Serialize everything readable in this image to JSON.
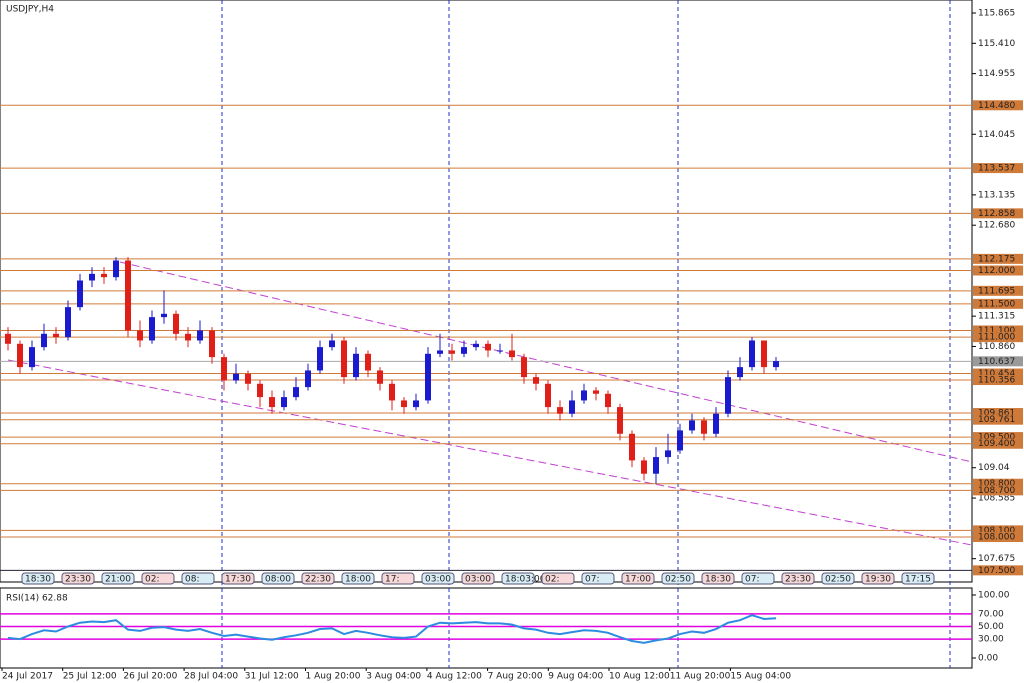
{
  "chart_data": {
    "type": "candlestick",
    "title": "USDJPY,H4",
    "up_color": "#1a1ad0",
    "down_color": "#e02018",
    "level_color": "#d07a3a",
    "ylim": [
      107.43,
      116.06
    ],
    "yticks": [
      115.865,
      {
        "value": 115.41,
        "label": "115.410"
      },
      114.955,
      114.045,
      113.135,
      {
        "value": 112.68,
        "label": "112.680"
      },
      111.315,
      {
        "value": 110.86,
        "label": "110.860"
      },
      109.04,
      108.585,
      107.675
    ],
    "levels": [
      {
        "value": 114.48,
        "label": "114.480"
      },
      113.537,
      112.858,
      112.175,
      {
        "value": 112.0,
        "label": "112.000"
      },
      111.695,
      {
        "value": 111.5,
        "label": "111.500"
      },
      {
        "value": 111.1,
        "label": "111.100"
      },
      {
        "value": 111.0,
        "label": "111.000"
      },
      110.454,
      110.356,
      109.861,
      109.761,
      {
        "value": 109.5,
        "label": "109.500"
      },
      {
        "value": 109.4,
        "label": "109.400"
      },
      {
        "value": 108.8,
        "label": "108.800"
      },
      {
        "value": 108.7,
        "label": "108.700"
      },
      {
        "value": 108.1,
        "label": "108.100"
      },
      {
        "value": 108.0,
        "label": "108.000"
      }
    ],
    "price_line": 110.637,
    "bottom_level": {
      "value": 107.5,
      "label": "107.500"
    },
    "open": [
      111.05,
      110.9,
      110.55,
      110.85,
      111.05,
      111.0,
      111.45,
      111.85,
      111.95,
      111.9,
      112.15,
      111.1,
      110.95,
      111.3,
      111.35,
      111.05,
      110.95,
      111.1,
      110.7,
      110.35,
      110.45,
      110.3,
      110.1,
      109.95,
      110.1,
      110.25,
      110.5,
      110.85,
      110.95,
      110.4,
      110.75,
      110.5,
      110.3,
      110.05,
      109.95,
      110.05,
      110.75,
      110.8,
      110.75,
      110.85,
      110.9,
      110.8,
      110.8,
      110.7,
      110.4,
      110.3,
      109.95,
      109.85,
      110.05,
      110.2,
      110.15,
      109.95,
      109.55,
      109.15,
      108.95,
      109.2,
      109.3,
      109.6,
      109.75,
      109.55,
      109.85,
      110.4,
      110.55,
      110.95,
      110.55
    ],
    "high": [
      111.15,
      110.95,
      110.95,
      111.2,
      111.15,
      111.55,
      111.95,
      112.05,
      112.05,
      112.2,
      112.2,
      111.25,
      111.4,
      111.7,
      111.4,
      111.15,
      111.25,
      111.15,
      110.75,
      110.6,
      110.5,
      110.35,
      110.2,
      110.2,
      110.4,
      110.6,
      110.95,
      111.05,
      111.0,
      110.85,
      110.8,
      110.55,
      110.35,
      110.1,
      110.15,
      110.85,
      111.05,
      110.9,
      110.95,
      110.95,
      110.95,
      110.9,
      111.05,
      110.75,
      110.45,
      110.35,
      110.05,
      110.2,
      110.3,
      110.25,
      110.2,
      110.0,
      109.6,
      109.2,
      109.35,
      109.55,
      109.7,
      109.85,
      109.8,
      109.95,
      110.5,
      110.7,
      111.0,
      110.95,
      110.7
    ],
    "low": [
      110.8,
      110.45,
      110.5,
      110.8,
      110.9,
      110.95,
      111.4,
      111.75,
      111.8,
      111.85,
      111.0,
      110.85,
      110.9,
      111.2,
      110.95,
      110.85,
      110.9,
      110.6,
      110.2,
      110.3,
      110.2,
      109.95,
      109.85,
      109.9,
      110.05,
      110.2,
      110.45,
      110.8,
      110.3,
      110.35,
      110.4,
      110.2,
      109.9,
      109.85,
      109.9,
      110.0,
      110.7,
      110.65,
      110.7,
      110.8,
      110.7,
      110.75,
      110.65,
      110.3,
      110.2,
      109.85,
      109.75,
      109.8,
      110.0,
      110.05,
      109.85,
      109.45,
      109.05,
      108.85,
      108.8,
      109.1,
      109.25,
      109.55,
      109.45,
      109.5,
      109.8,
      110.35,
      110.5,
      110.45,
      110.5
    ],
    "close": [
      110.9,
      110.55,
      110.85,
      111.05,
      111.0,
      111.45,
      111.85,
      111.95,
      111.9,
      112.15,
      111.1,
      110.95,
      111.3,
      111.35,
      111.05,
      110.95,
      111.1,
      110.7,
      110.35,
      110.45,
      110.3,
      110.1,
      109.95,
      110.1,
      110.25,
      110.5,
      110.85,
      110.95,
      110.4,
      110.75,
      110.5,
      110.3,
      110.05,
      109.95,
      110.05,
      110.75,
      110.8,
      110.75,
      110.85,
      110.9,
      110.8,
      110.8,
      110.7,
      110.4,
      110.3,
      109.95,
      109.85,
      110.05,
      110.2,
      110.15,
      109.95,
      109.55,
      109.15,
      108.95,
      109.2,
      109.3,
      109.6,
      109.75,
      109.55,
      109.85,
      110.4,
      110.55,
      110.95,
      110.55,
      110.64
    ],
    "x_labels": [
      "24 Jul 2017",
      "25 Jul 12:00",
      "26 Jul 20:00",
      "28 Jul 04:00",
      "31 Jul 12:00",
      "1 Aug 20:00",
      "3 Aug 04:00",
      "4 Aug 12:00",
      "7 Aug 20:00",
      "9 Aug 04:00",
      "10 Aug 12:00",
      "11 Aug 20:00",
      "15 Aug 04:00"
    ],
    "time_boxes": [
      "18:30",
      "23:30",
      "21:00",
      "02:",
      "08:",
      "17:30",
      "08:00",
      "22:30",
      "18:00",
      "17:",
      "03:00",
      "03:00",
      "18:03:00",
      "02:",
      "07:",
      "17:00",
      "02:50",
      "18:30",
      "07:",
      "23:30",
      "02:50",
      "19:30",
      "17:15"
    ],
    "rsi": {
      "title": "RSI(14) 62.88",
      "color": "#2d8ce0",
      "level_color": "#e000e0",
      "ylim": [
        0,
        100
      ],
      "yticks": [
        {
          "value": 100,
          "label": "100.00"
        },
        {
          "value": 70,
          "label": "70.00"
        },
        {
          "value": 50,
          "label": "50.00"
        },
        {
          "value": 30,
          "label": "30.00"
        },
        {
          "value": 0,
          "label": "0.00"
        }
      ],
      "values": [
        32,
        30,
        38,
        44,
        42,
        50,
        56,
        58,
        57,
        60,
        45,
        43,
        48,
        49,
        45,
        43,
        46,
        40,
        35,
        37,
        34,
        31,
        29,
        33,
        36,
        40,
        46,
        47,
        38,
        43,
        40,
        36,
        33,
        32,
        34,
        50,
        56,
        55,
        56,
        57,
        55,
        55,
        53,
        47,
        45,
        40,
        38,
        41,
        44,
        43,
        40,
        33,
        27,
        24,
        28,
        31,
        38,
        42,
        40,
        46,
        56,
        60,
        68,
        62,
        63
      ]
    }
  }
}
